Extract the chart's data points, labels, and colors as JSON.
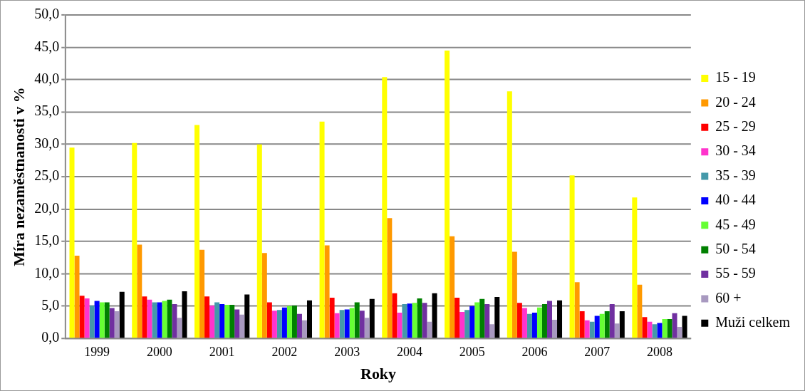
{
  "chart_data": {
    "type": "bar",
    "xlabel": "Roky",
    "ylabel": "Míra nezaměstnanosti v %",
    "categories": [
      "1999",
      "2000",
      "2001",
      "2002",
      "2003",
      "2004",
      "2005",
      "2006",
      "2007",
      "2008"
    ],
    "series": [
      {
        "name": "15 - 19",
        "color": "#ffff00",
        "values": [
          29.5,
          30.2,
          33.0,
          30.0,
          33.5,
          40.4,
          44.5,
          38.2,
          25.2,
          21.8
        ]
      },
      {
        "name": "20 - 24",
        "color": "#ff9900",
        "values": [
          12.8,
          14.5,
          13.7,
          13.2,
          14.4,
          18.6,
          15.8,
          13.4,
          8.7,
          8.3
        ]
      },
      {
        "name": "25 - 29",
        "color": "#ff0000",
        "values": [
          6.6,
          6.5,
          6.5,
          5.6,
          6.3,
          7.0,
          6.3,
          5.5,
          4.2,
          3.3
        ]
      },
      {
        "name": "30 - 34",
        "color": "#ff33cc",
        "values": [
          6.2,
          6.0,
          5.1,
          4.3,
          3.9,
          4.0,
          4.1,
          4.7,
          2.8,
          2.6
        ]
      },
      {
        "name": "35 - 39",
        "color": "#4499aa",
        "values": [
          5.1,
          5.6,
          5.6,
          4.4,
          4.4,
          5.3,
          4.4,
          3.8,
          2.6,
          2.2
        ]
      },
      {
        "name": "40 - 44",
        "color": "#0000ff",
        "values": [
          5.8,
          5.6,
          5.3,
          4.8,
          4.5,
          5.4,
          5.0,
          4.0,
          3.5,
          2.4
        ]
      },
      {
        "name": "45 - 49",
        "color": "#66ff33",
        "values": [
          5.6,
          5.8,
          5.2,
          5.0,
          4.7,
          5.5,
          5.6,
          4.8,
          3.8,
          3.0
        ]
      },
      {
        "name": "50 - 54",
        "color": "#008000",
        "values": [
          5.6,
          6.0,
          5.2,
          5.1,
          5.6,
          6.2,
          6.1,
          5.3,
          4.2,
          3.0
        ]
      },
      {
        "name": "55 - 59",
        "color": "#7030a0",
        "values": [
          4.7,
          5.3,
          4.5,
          3.8,
          4.3,
          5.5,
          5.3,
          5.8,
          5.3,
          3.9
        ]
      },
      {
        "name": "60 +",
        "color": "#a899c0",
        "values": [
          4.2,
          3.2,
          3.7,
          2.8,
          3.2,
          2.6,
          2.2,
          2.9,
          2.3,
          1.8
        ]
      },
      {
        "name": "Muži celkem",
        "color": "#000000",
        "values": [
          7.2,
          7.3,
          6.8,
          5.9,
          6.1,
          7.0,
          6.4,
          5.9,
          4.2,
          3.5
        ]
      }
    ],
    "ylim": [
      0,
      50
    ],
    "yticks": [
      {
        "value": 0,
        "label": "0,0"
      },
      {
        "value": 5,
        "label": "5,0"
      },
      {
        "value": 10,
        "label": "10,0"
      },
      {
        "value": 15,
        "label": "15,0"
      },
      {
        "value": 20,
        "label": "20,0"
      },
      {
        "value": 25,
        "label": "25,0"
      },
      {
        "value": 30,
        "label": "30,0"
      },
      {
        "value": 35,
        "label": "35,0"
      },
      {
        "value": 40,
        "label": "40,0"
      },
      {
        "value": 45,
        "label": "45,0"
      },
      {
        "value": 50,
        "label": "50,0"
      }
    ],
    "grid": "y",
    "legend": "right"
  }
}
